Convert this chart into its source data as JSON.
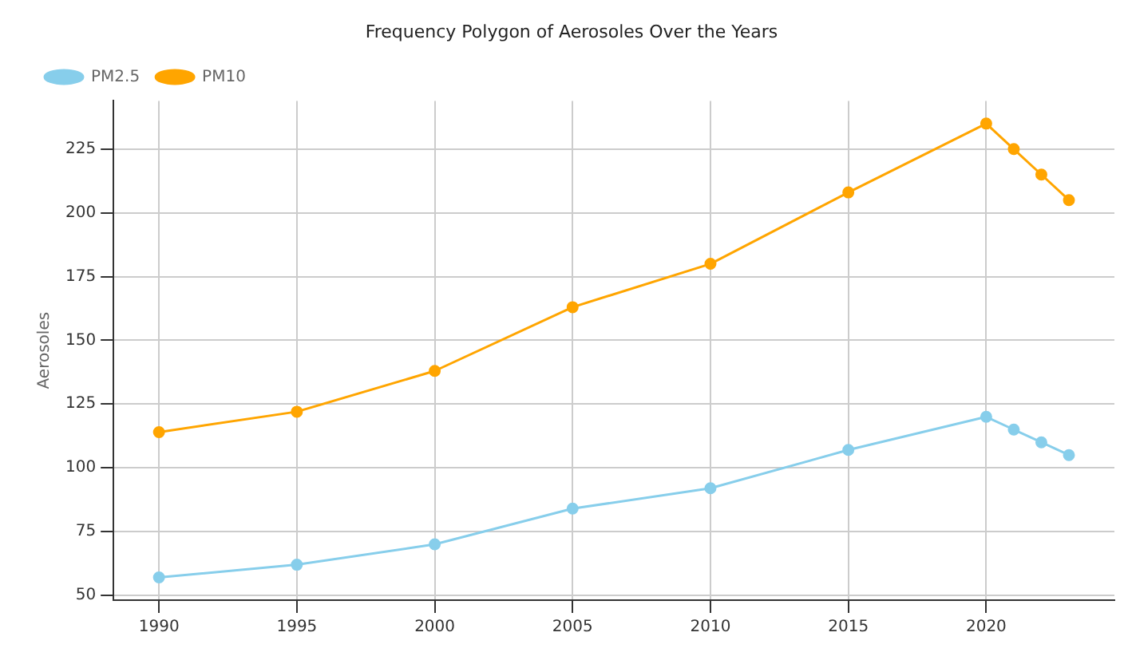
{
  "chart_data": {
    "type": "line",
    "title": "Frequency Polygon of Aerosoles Over the Years",
    "ylabel": "Aerosoles",
    "x": [
      1990,
      1995,
      2000,
      2005,
      2010,
      2015,
      2020,
      2021,
      2022,
      2023
    ],
    "series": [
      {
        "name": "PM2.5",
        "color": "#87ceeb",
        "values": [
          57,
          62,
          70,
          84,
          92,
          107,
          120,
          115,
          110,
          105
        ]
      },
      {
        "name": "PM10",
        "color": "#ffa500",
        "values": [
          114,
          122,
          138,
          163,
          180,
          208,
          235,
          225,
          215,
          205
        ]
      }
    ],
    "xlim": [
      1988.35,
      2024.65
    ],
    "xticks": [
      1990,
      1995,
      2000,
      2005,
      2010,
      2015,
      2020
    ],
    "ylim": [
      48.1,
      243.9
    ],
    "yticks": [
      50,
      75,
      100,
      125,
      150,
      175,
      200,
      225
    ],
    "grid": true,
    "legend": "top left",
    "marker": "circle",
    "line_style": "solid"
  }
}
